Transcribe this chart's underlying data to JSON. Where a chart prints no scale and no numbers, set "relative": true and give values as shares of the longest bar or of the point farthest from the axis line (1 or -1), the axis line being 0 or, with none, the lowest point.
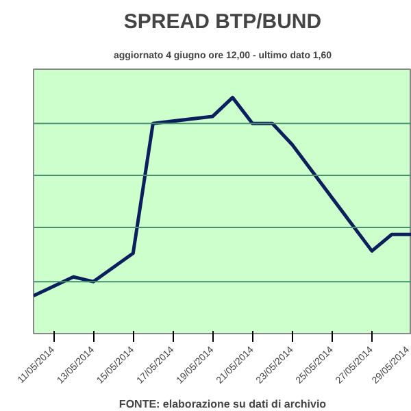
{
  "chart_data": {
    "type": "line",
    "title": "SPREAD BTP/BUND",
    "subtitle": "aggiornato 4 giugno ore 12,00 - ultimo dato 1,60",
    "relative": true,
    "x": [
      "2014-05-10",
      "2014-05-12",
      "2014-05-13",
      "2014-05-15",
      "2014-05-16",
      "2014-05-19",
      "2014-05-20",
      "2014-05-21",
      "2014-05-22",
      "2014-05-23",
      "2014-05-27",
      "2014-05-28",
      "2014-05-29"
    ],
    "series": [
      {
        "color": "#0a1f5c",
        "values": [
          0.16,
          0.24,
          0.22,
          0.34,
          0.89,
          0.92,
          1,
          0.89,
          0.89,
          0.8,
          0.35,
          0.42,
          0.42
        ]
      }
    ],
    "xlim": [
      "2014-05-10",
      "2014-05-29"
    ],
    "xticks": [
      {
        "value": "2014-05-11",
        "label": "11/05/2014"
      },
      {
        "value": "2014-05-13",
        "label": "13/05/2014"
      },
      {
        "value": "2014-05-15",
        "label": "15/05/2014"
      },
      {
        "value": "2014-05-17",
        "label": "17/05/2014"
      },
      {
        "value": "2014-05-19",
        "label": "19/05/2014"
      },
      {
        "value": "2014-05-21",
        "label": "21/05/2014"
      },
      {
        "value": "2014-05-23",
        "label": "23/05/2014"
      },
      {
        "value": "2014-05-25",
        "label": "25/05/2014"
      },
      {
        "value": "2014-05-27",
        "label": "27/05/2014"
      },
      {
        "value": "2014-05-29",
        "label": "29/05/2014"
      }
    ],
    "ref_lines": [
      {
        "axis": "y",
        "value": 0.22,
        "color": "#4a8f70"
      },
      {
        "axis": "y",
        "value": 0.45,
        "color": "#4a8f70"
      },
      {
        "axis": "y",
        "value": 0.67,
        "color": "#4a8f70"
      },
      {
        "axis": "y",
        "value": 0.89,
        "color": "#4a8f70"
      }
    ],
    "marker": "none",
    "line_style": "solid",
    "annotations": [
      "FONTE: elaborazione su dati di archivio"
    ]
  }
}
